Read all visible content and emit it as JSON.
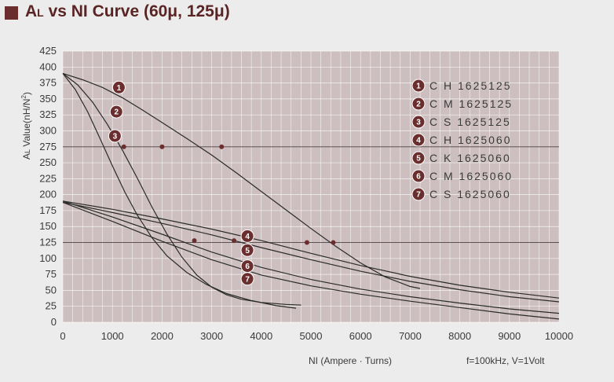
{
  "title": "AL vs NI Curve (60μ, 125μ)",
  "title_parts": {
    "main": "A",
    "sub": "L",
    "rest": " vs NI Curve (60μ, 125μ)"
  },
  "colors": {
    "plot_bg": "#cdbfbf",
    "grid": "#ffffff",
    "curve": "#2a2a2a",
    "marker": "#6b2e2e",
    "title": "#5a2424"
  },
  "chart_data": {
    "type": "line",
    "title": "AL vs NI Curve (60μ, 125μ)",
    "xlabel": "NI (Ampere · Turns)",
    "ylabel": "AL Value(nH/N²)",
    "ylabel_parts": {
      "main": "A",
      "sub": "L",
      "rest": " Value(nH/N",
      "sup": "2",
      "end": ")"
    },
    "note": "f=100kHz, V=1Volt",
    "xlim": [
      0,
      10000
    ],
    "ylim": [
      0,
      425
    ],
    "x_ticks": [
      0,
      1000,
      2000,
      3000,
      4000,
      5000,
      6000,
      7000,
      8000,
      9000,
      10000
    ],
    "y_ticks": [
      0,
      25,
      50,
      75,
      100,
      125,
      150,
      175,
      200,
      225,
      250,
      275,
      300,
      325,
      350,
      375,
      400,
      425
    ],
    "x_tick_labels": [
      "0",
      "1000",
      "2000",
      "3000",
      "4000",
      "5000",
      "6000",
      "7000",
      "8000",
      "9000",
      "10000"
    ],
    "y_tick_labels": [
      "0",
      "25",
      "50",
      "75",
      "100",
      "125",
      "150",
      "175",
      "200",
      "225",
      "250",
      "275",
      "300",
      "325",
      "350",
      "375",
      "400",
      "425"
    ],
    "grid": true,
    "legend_position": "top-right",
    "reference_lines": [
      275,
      125
    ],
    "series": [
      {
        "marker": "1",
        "name": "C H 1625125",
        "x": [
          0,
          400,
          800,
          1200,
          1600,
          2000,
          2500,
          3000,
          3500,
          4000,
          4500,
          5000,
          5500,
          6000,
          6500,
          7000,
          7200
        ],
        "y": [
          390,
          380,
          368,
          352,
          333,
          313,
          288,
          262,
          234,
          205,
          176,
          147,
          119,
          93,
          71,
          56,
          53
        ]
      },
      {
        "marker": "2",
        "name": "C M 1625125",
        "x": [
          0,
          300,
          600,
          900,
          1200,
          1500,
          1800,
          2100,
          2400,
          2700,
          3000,
          3300,
          3600,
          4000,
          4500,
          4800
        ],
        "y": [
          390,
          372,
          345,
          310,
          270,
          226,
          180,
          138,
          102,
          74,
          55,
          43,
          36,
          31,
          28,
          27
        ]
      },
      {
        "marker": "3",
        "name": "C S 1625125",
        "x": [
          0,
          250,
          500,
          750,
          1000,
          1250,
          1500,
          1800,
          2100,
          2500,
          2900,
          3300,
          3800,
          4300,
          4700
        ],
        "y": [
          390,
          365,
          330,
          288,
          245,
          204,
          168,
          132,
          104,
          78,
          59,
          45,
          34,
          26,
          22
        ]
      },
      {
        "marker": "4",
        "name": "C H 1625060",
        "x": [
          0,
          1000,
          2000,
          3000,
          4000,
          5000,
          6000,
          7000,
          8000,
          9000,
          10000
        ],
        "y": [
          190,
          177,
          162,
          146,
          128,
          108,
          89,
          72,
          58,
          47,
          38
        ]
      },
      {
        "marker": "5",
        "name": "C K 1625060",
        "x": [
          0,
          1000,
          2000,
          3000,
          4000,
          5000,
          6000,
          7000,
          8000,
          9000,
          10000
        ],
        "y": [
          188,
          172,
          155,
          137,
          117,
          98,
          80,
          64,
          51,
          40,
          32
        ]
      },
      {
        "marker": "6",
        "name": "C M 1625060",
        "x": [
          0,
          1000,
          2000,
          3000,
          4000,
          5000,
          6000,
          7000,
          8000,
          9000,
          10000
        ],
        "y": [
          190,
          165,
          138,
          110,
          86,
          67,
          52,
          40,
          30,
          21,
          14
        ]
      },
      {
        "marker": "7",
        "name": "C S 1625060",
        "x": [
          0,
          1000,
          2000,
          3000,
          4000,
          5000,
          6000,
          7000,
          8000,
          9000,
          10000
        ],
        "y": [
          188,
          158,
          127,
          98,
          74,
          57,
          44,
          33,
          23,
          13,
          5
        ]
      }
    ],
    "curve_markers": [
      {
        "label": "1",
        "x": 1130,
        "y": 368
      },
      {
        "label": "2",
        "x": 1080,
        "y": 330
      },
      {
        "label": "3",
        "x": 1050,
        "y": 292
      },
      {
        "label": "4",
        "x": 3720,
        "y": 135
      },
      {
        "label": "5",
        "x": 3720,
        "y": 113
      },
      {
        "label": "6",
        "x": 3720,
        "y": 88
      },
      {
        "label": "7",
        "x": 3720,
        "y": 68
      }
    ],
    "points": [
      {
        "x": 1230,
        "y": 275
      },
      {
        "x": 2000,
        "y": 275
      },
      {
        "x": 3200,
        "y": 275
      },
      {
        "x": 2650,
        "y": 128
      },
      {
        "x": 3450,
        "y": 128
      },
      {
        "x": 4920,
        "y": 125
      },
      {
        "x": 5450,
        "y": 125
      }
    ]
  }
}
